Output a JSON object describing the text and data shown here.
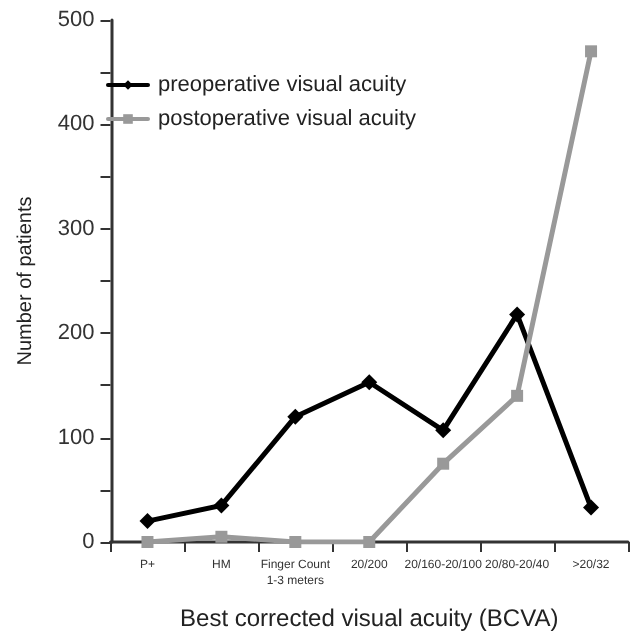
{
  "chart_data": {
    "type": "line",
    "xlabel": "Best corrected visual acuity (BCVA)",
    "ylabel": "Number of patients",
    "categories": [
      "P+",
      "HM",
      "Finger Count\n1-3 meters",
      "20/200",
      "20/160-20/100",
      "20/80-20/40",
      ">20/32"
    ],
    "series": [
      {
        "name": "preoperative visual acuity",
        "color": "#000000",
        "marker": "diamond",
        "values": [
          20,
          35,
          120,
          153,
          107,
          218,
          33
        ]
      },
      {
        "name": "postoperative visual acuity",
        "color": "#999999",
        "marker": "square",
        "values": [
          0,
          5,
          0,
          0,
          75,
          140,
          470
        ]
      }
    ],
    "ylim": [
      0,
      500
    ],
    "yticks": [
      0,
      {
        "value": 50,
        "label": null
      },
      100,
      {
        "value": 150,
        "label": null
      },
      200,
      {
        "value": 250,
        "label": null
      },
      300,
      {
        "value": 350,
        "label": null
      },
      400,
      {
        "value": 450,
        "label": null
      },
      500
    ],
    "grid": false,
    "legend": "top left",
    "line_style": "solid"
  }
}
